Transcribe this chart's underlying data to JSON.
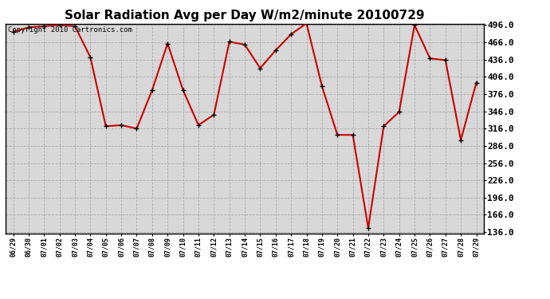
{
  "title": "Solar Radiation Avg per Day W/m2/minute 20100729",
  "copyright_text": "Copyright 2010 Cartronics.com",
  "labels": [
    "06/29",
    "06/30",
    "07/01",
    "07/02",
    "07/03",
    "07/04",
    "07/05",
    "07/06",
    "07/07",
    "07/08",
    "07/09",
    "07/10",
    "07/11",
    "07/12",
    "07/13",
    "07/14",
    "07/15",
    "07/16",
    "07/17",
    "07/18",
    "07/19",
    "07/20",
    "07/21",
    "07/22",
    "07/23",
    "07/24",
    "07/25",
    "07/26",
    "07/27",
    "07/28",
    "07/29"
  ],
  "values": [
    484,
    492,
    494,
    496,
    494,
    440,
    320,
    322,
    316,
    383,
    464,
    383,
    322,
    340,
    467,
    462,
    421,
    452,
    480,
    499,
    390,
    305,
    305,
    143,
    320,
    345,
    496,
    438,
    435,
    296,
    396
  ],
  "line_color": "#cc0000",
  "marker_color": "#000000",
  "background_color": "#ffffff",
  "plot_bg_color": "#d8d8d8",
  "grid_color": "#aaaaaa",
  "title_fontsize": 11,
  "copyright_fontsize": 6.5,
  "xtick_fontsize": 6,
  "ytick_fontsize": 8,
  "ylim_min": 136.0,
  "ylim_max": 496.0,
  "ytick_labels": [
    "136.0",
    "166.0",
    "196.0",
    "226.0",
    "256.0",
    "286.0",
    "316.0",
    "346.0",
    "376.0",
    "406.0",
    "436.0",
    "466.0",
    "496.0"
  ],
  "ytick_values": [
    136,
    166,
    196,
    226,
    256,
    286,
    316,
    346,
    376,
    406,
    436,
    466,
    496
  ]
}
